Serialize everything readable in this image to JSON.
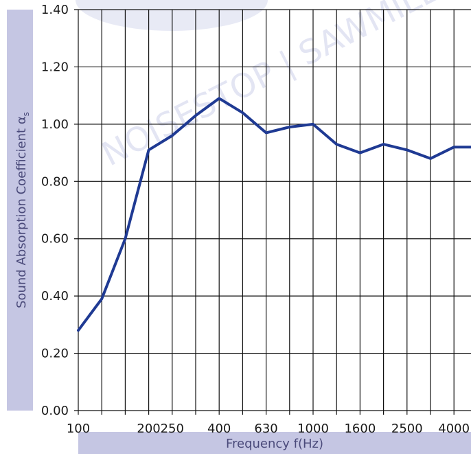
{
  "chart_data": {
    "type": "line",
    "title": "",
    "xlabel": "Frequency f(Hz)",
    "ylabel": "Sound Absorption Coefficient α",
    "ylabel_subscript": "s",
    "x": [
      "100",
      "125",
      "160",
      "200",
      "250",
      "315",
      "400",
      "500",
      "630",
      "800",
      "1000",
      "1250",
      "1600",
      "2000",
      "2500",
      "3150",
      "4000",
      "5000"
    ],
    "x_tick_labels": [
      "100",
      "200",
      "250",
      "400",
      "630",
      "1000",
      "1600",
      "2500",
      "4000"
    ],
    "y_tick_labels": [
      "0.00",
      "0.20",
      "0.40",
      "0.60",
      "0.80",
      "1.00",
      "1.20",
      "1.40"
    ],
    "ylim": [
      0,
      1.4
    ],
    "grid": true,
    "series": [
      {
        "values": [
          0.28,
          0.39,
          0.6,
          0.91,
          0.96,
          1.03,
          1.09,
          1.04,
          0.97,
          0.99,
          1.0,
          0.93,
          0.9,
          0.93,
          0.91,
          0.88,
          0.92,
          0.92
        ]
      }
    ],
    "colors": {
      "line": "#1f3a93",
      "grid": "#111111",
      "label_band": "#c5c6e3",
      "watermark": "#e3e5f3"
    },
    "watermark_text": "NOISESTOP | SAWMILL"
  }
}
